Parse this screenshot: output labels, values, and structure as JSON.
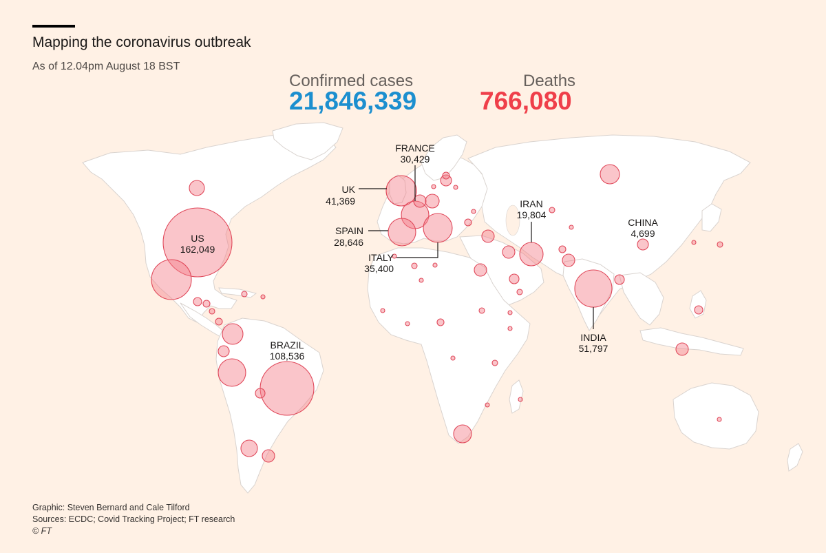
{
  "title": "Mapping the coronavirus outbreak",
  "subtitle": "As of 12.04pm August 18 BST",
  "stats": {
    "cases_label": "Confirmed cases",
    "cases_value": "21,846,339",
    "deaths_label": "Deaths",
    "deaths_value": "766,080",
    "cases_color": "#1c8fcf",
    "deaths_color": "#ef3f4a"
  },
  "labels": {
    "us": {
      "name": "US",
      "value": "162,049"
    },
    "brazil": {
      "name": "BRAZIL",
      "value": "108,536"
    },
    "uk": {
      "name": "UK",
      "value": "41,369"
    },
    "france": {
      "name": "FRANCE",
      "value": "30,429"
    },
    "spain": {
      "name": "SPAIN",
      "value": "28,646"
    },
    "italy": {
      "name": "ITALY",
      "value": "35,400"
    },
    "iran": {
      "name": "IRAN",
      "value": "19,804"
    },
    "china": {
      "name": "CHINA",
      "value": "4,699"
    },
    "india": {
      "name": "INDIA",
      "value": "51,797"
    }
  },
  "footer": {
    "credit": "Graphic: Steven Bernard and Cale Tilford",
    "sources": "Sources: ECDC; Covid Tracking Project; FT research",
    "copyright": "© FT"
  },
  "colors": {
    "background": "#fff1e5",
    "bubble_stroke": "#e0485a",
    "land": "#ffffff"
  }
}
